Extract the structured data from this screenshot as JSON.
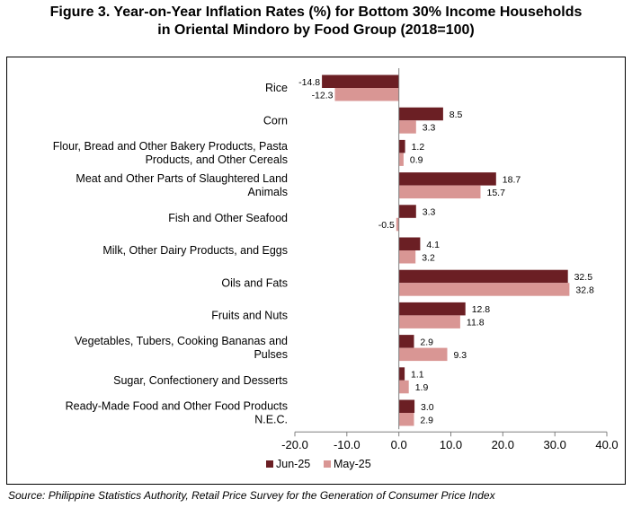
{
  "title_line1": "Figure 3. Year-on-Year Inflation Rates (%) for Bottom 30% Income Households",
  "title_line2": "in Oriental Mindoro by Food Group (2018=100)",
  "source": "Source: Philippine Statistics Authority, Retail Price Survey for the Generation of Consumer Price Index",
  "colors": {
    "jun": "#6b1f24",
    "may": "#d99694",
    "axis": "#7f7f7f"
  },
  "chart_data": {
    "type": "bar",
    "orientation": "horizontal",
    "categories": [
      [
        "Rice"
      ],
      [
        "Corn"
      ],
      [
        "Flour, Bread and Other Bakery Products, Pasta",
        "Products, and Other Cereals"
      ],
      [
        "Meat and Other Parts of Slaughtered Land",
        "Animals"
      ],
      [
        "Fish and Other Seafood"
      ],
      [
        "Milk, Other Dairy Products, and Eggs"
      ],
      [
        "Oils and Fats"
      ],
      [
        "Fruits and Nuts"
      ],
      [
        "Vegetables, Tubers, Cooking Bananas and",
        "Pulses"
      ],
      [
        "Sugar, Confectionery and Desserts"
      ],
      [
        "Ready-Made Food and Other Food Products",
        "N.E.C."
      ]
    ],
    "series": [
      {
        "name": "Jun-25",
        "values": [
          -14.8,
          8.5,
          1.2,
          18.7,
          3.3,
          4.1,
          32.5,
          12.8,
          2.9,
          1.1,
          3.0
        ],
        "labels": [
          "-14.8",
          "8.5",
          "1.2",
          "18.7",
          "3.3",
          "4.1",
          "32.5",
          "12.8",
          "2.9",
          "1.1",
          "3.0"
        ]
      },
      {
        "name": "May-25",
        "values": [
          -12.3,
          3.3,
          0.9,
          15.7,
          -0.5,
          3.2,
          32.8,
          11.8,
          9.3,
          1.9,
          2.9
        ],
        "labels": [
          "-12.3",
          "3.3",
          "0.9",
          "15.7",
          "-0.5",
          "3.2",
          "32.8",
          "11.8",
          "9.3",
          "1.9",
          "2.9"
        ]
      }
    ],
    "xlim": [
      -20,
      40
    ],
    "xticks": [
      -20,
      -10,
      0,
      10,
      20,
      30,
      40
    ],
    "xtick_labels": [
      "-20.0",
      "-10.0",
      "0.0",
      "10.0",
      "20.0",
      "30.0",
      "40.0"
    ],
    "legend_position": "bottom-left",
    "grid": false
  }
}
